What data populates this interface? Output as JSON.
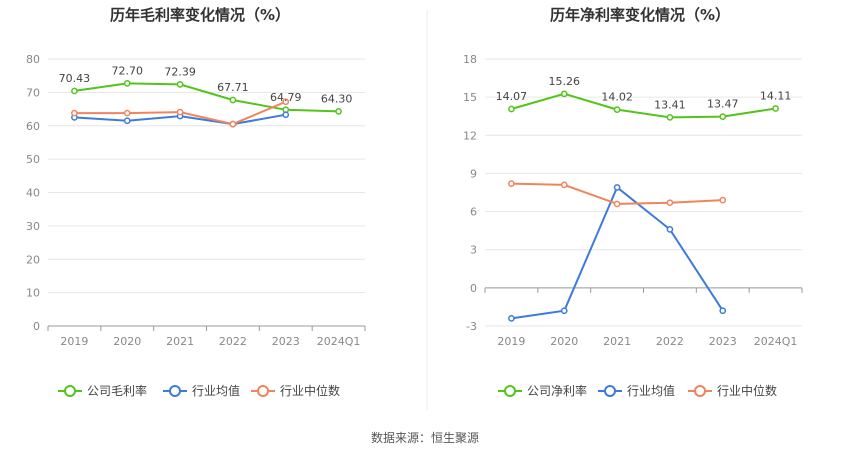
{
  "source_label": "数据来源：恒生聚源",
  "chart_data": [
    {
      "type": "line",
      "title": "历年毛利率变化情况（%）",
      "categories": [
        "2019",
        "2020",
        "2021",
        "2022",
        "2023",
        "2024Q1"
      ],
      "ylim": [
        0,
        80
      ],
      "yticks": [
        0,
        10,
        20,
        30,
        40,
        50,
        60,
        70,
        80
      ],
      "legend_position": "bottom",
      "series": [
        {
          "name": "公司毛利率",
          "color": "#52c41a",
          "values": [
            70.43,
            72.7,
            72.39,
            67.71,
            64.79,
            64.3
          ],
          "labels": [
            "70.43",
            "72.70",
            "72.39",
            "67.71",
            "64.79",
            "64.30"
          ]
        },
        {
          "name": "行业均值",
          "color": "#3d7bdb",
          "values": [
            62.5,
            61.5,
            62.9,
            60.5,
            63.3,
            null
          ]
        },
        {
          "name": "行业中位数",
          "color": "#f0845c",
          "values": [
            63.8,
            63.8,
            64.1,
            60.5,
            67.2,
            null
          ]
        }
      ]
    },
    {
      "type": "line",
      "title": "历年净利率变化情况（%）",
      "categories": [
        "2019",
        "2020",
        "2021",
        "2022",
        "2023",
        "2024Q1"
      ],
      "ylim": [
        -3,
        18
      ],
      "yticks": [
        -3,
        0,
        3,
        6,
        9,
        12,
        15,
        18
      ],
      "legend_position": "bottom",
      "series": [
        {
          "name": "公司净利率",
          "color": "#52c41a",
          "values": [
            14.07,
            15.26,
            14.02,
            13.41,
            13.47,
            14.11
          ],
          "labels": [
            "14.07",
            "15.26",
            "14.02",
            "13.41",
            "13.47",
            "14.11"
          ]
        },
        {
          "name": "行业均值",
          "color": "#3d7bdb",
          "values": [
            -2.4,
            -1.8,
            7.9,
            4.6,
            -1.8,
            null
          ]
        },
        {
          "name": "行业中位数",
          "color": "#f0845c",
          "values": [
            8.2,
            8.1,
            6.6,
            6.7,
            6.9,
            null
          ]
        }
      ]
    }
  ]
}
